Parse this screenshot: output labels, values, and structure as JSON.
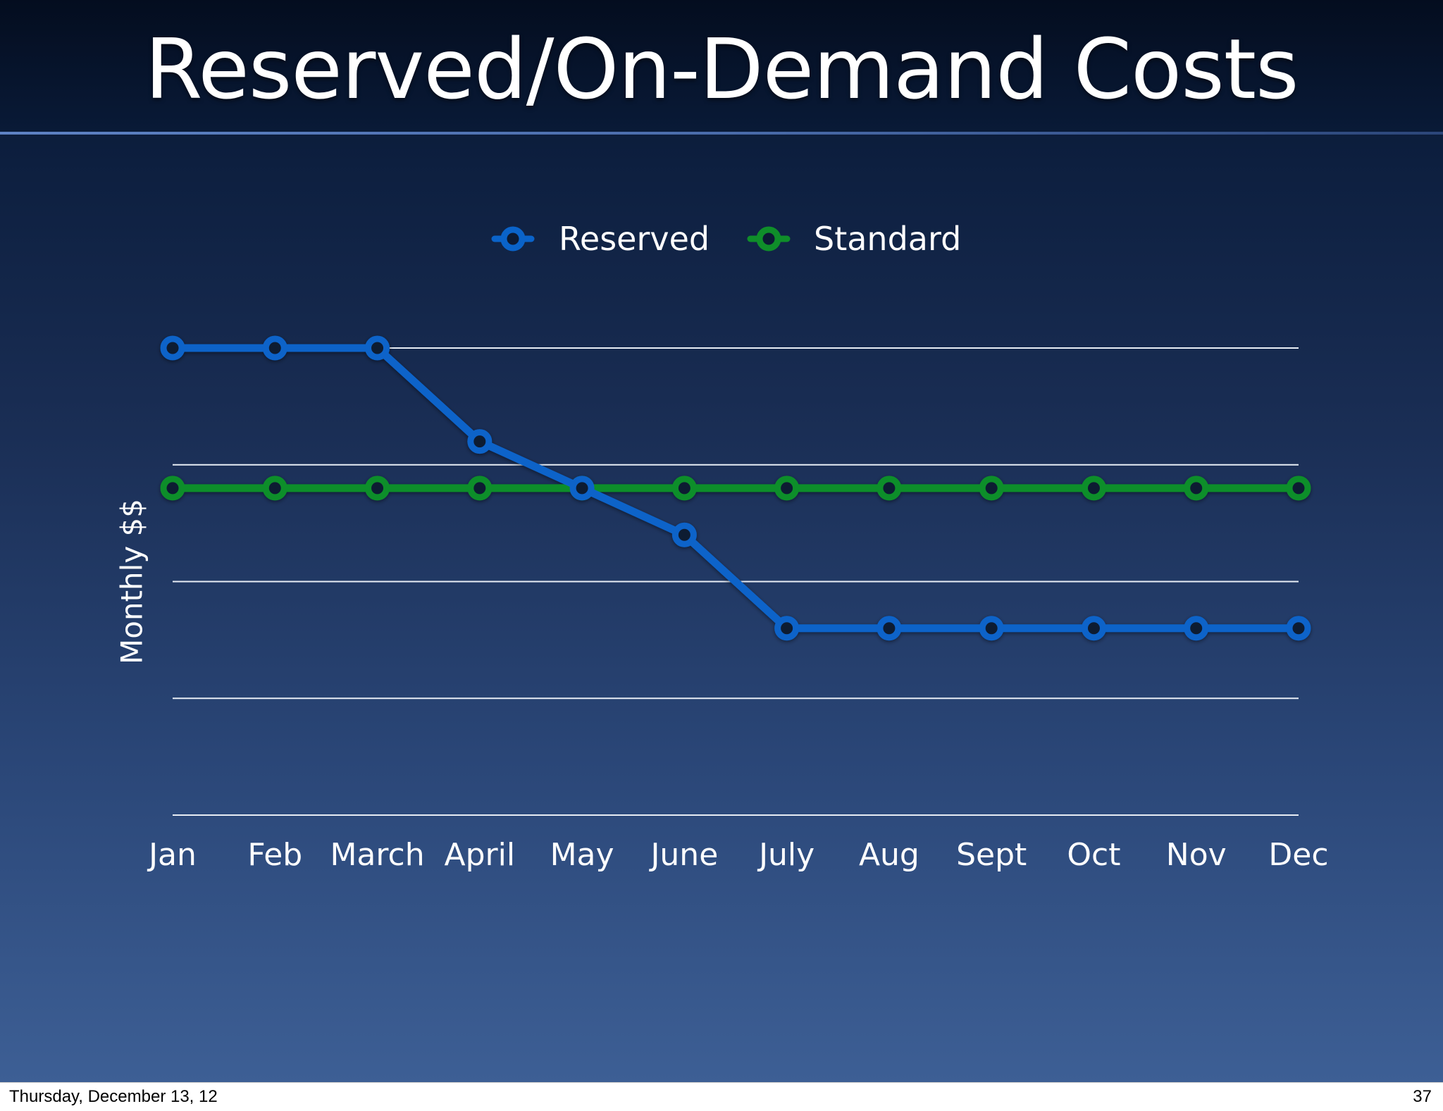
{
  "slide": {
    "title": "Reserved/On-Demand Costs"
  },
  "footer": {
    "date": "Thursday, December 13, 12",
    "page": "37"
  },
  "chart_data": {
    "type": "line",
    "title": "",
    "xlabel": "",
    "ylabel": "Monthly $$",
    "categories": [
      "Jan",
      "Feb",
      "March",
      "April",
      "May",
      "June",
      "July",
      "Aug",
      "Sept",
      "Oct",
      "Nov",
      "Dec"
    ],
    "ylim": [
      0,
      100
    ],
    "grid": true,
    "legend_position": "top-center",
    "series": [
      {
        "name": "Reserved",
        "color": "#0a63c9",
        "values": [
          100,
          100,
          100,
          80,
          70,
          60,
          40,
          40,
          40,
          40,
          40,
          40
        ]
      },
      {
        "name": "Standard",
        "color": "#0f8e2a",
        "values": [
          70,
          70,
          70,
          70,
          70,
          70,
          70,
          70,
          70,
          70,
          70,
          70
        ]
      }
    ]
  }
}
